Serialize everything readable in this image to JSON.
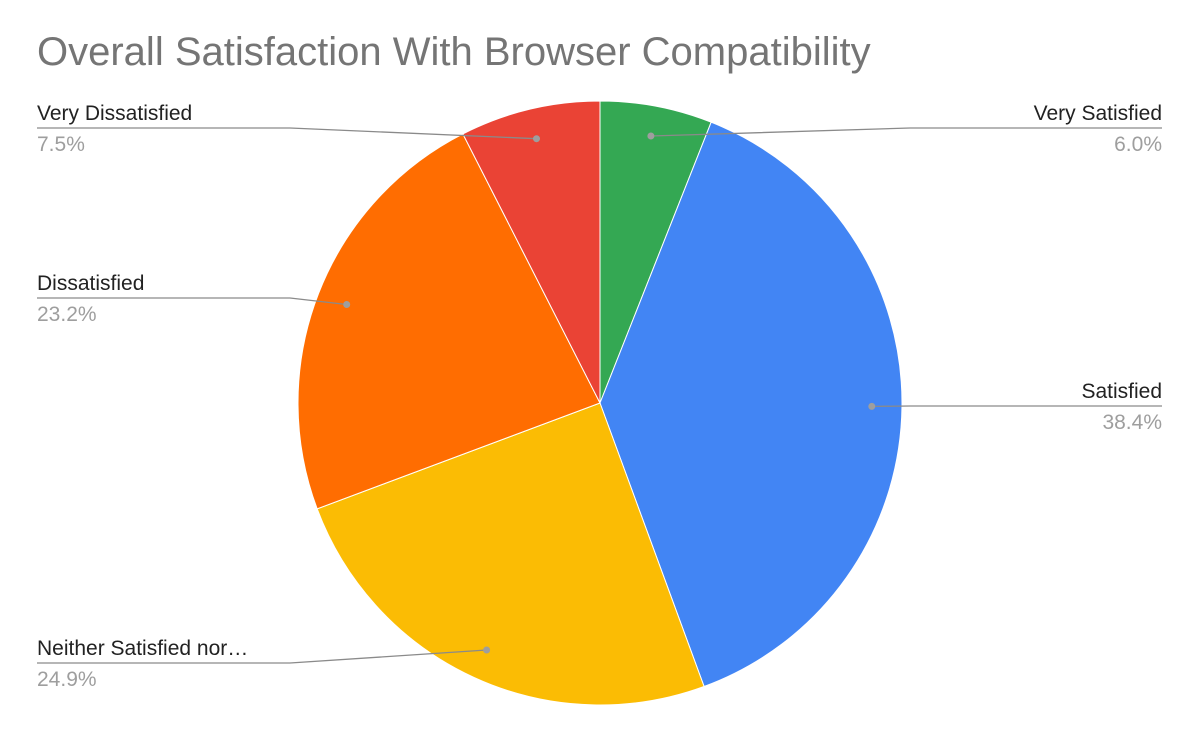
{
  "chart_data": {
    "type": "pie",
    "title": "Overall Satisfaction With Browser Compatibility",
    "start_angle_deg": 0,
    "direction": "clockwise",
    "slices": [
      {
        "label": "Very Satisfied",
        "value": 6.0,
        "value_label": "6.0%",
        "color": "#34a853",
        "label_side": "right"
      },
      {
        "label": "Satisfied",
        "value": 38.4,
        "value_label": "38.4%",
        "color": "#4285f4",
        "label_side": "right"
      },
      {
        "label": "Neither Satisfied nor…",
        "value": 24.9,
        "value_label": "24.9%",
        "color": "#fbbc04",
        "label_side": "left"
      },
      {
        "label": "Dissatisfied",
        "value": 23.2,
        "value_label": "23.2%",
        "color": "#ff6d01",
        "label_side": "left"
      },
      {
        "label": "Very Dissatisfied",
        "value": 7.5,
        "value_label": "7.5%",
        "color": "#ea4335",
        "label_side": "left"
      }
    ]
  }
}
